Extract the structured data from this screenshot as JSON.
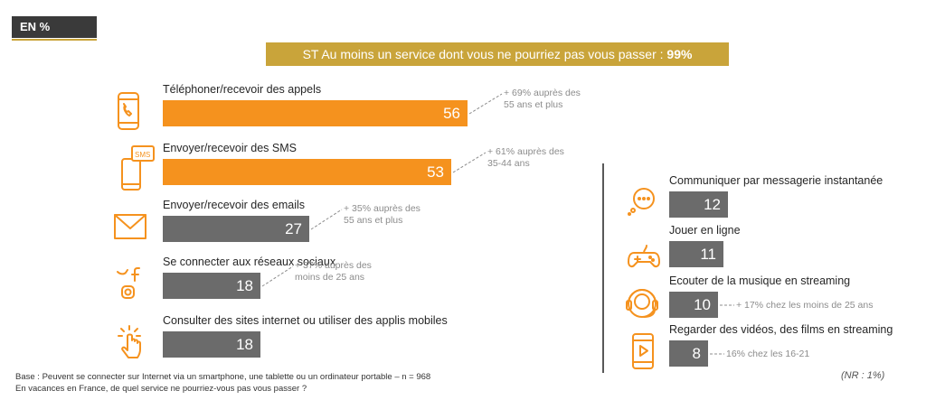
{
  "header": {
    "tag": "EN %"
  },
  "banner": {
    "text": "ST Au moins un service dont vous ne pourriez pas vous passer : ",
    "value": "99%"
  },
  "chart_data": {
    "type": "bar",
    "orientation": "horizontal",
    "categories": [
      "Téléphoner/recevoir des appels",
      "Envoyer/recevoir des SMS",
      "Envoyer/recevoir des emails",
      "Se connecter aux réseaux sociaux",
      "Consulter des sites internet ou utiliser des applis mobiles",
      "Communiquer par messagerie instantanée",
      "Jouer en ligne",
      "Ecouter de la musique en streaming",
      "Regarder des vidéos, des films en streaming"
    ],
    "values": [
      56,
      53,
      27,
      18,
      18,
      12,
      11,
      10,
      8
    ],
    "annotations": [
      "+ 69% auprès des\n55 ans et plus",
      "+ 61% auprès des\n35-44 ans",
      "+ 35% auprès des\n55 ans et plus",
      "+ 37% auprès des\nmoins de 25 ans",
      "",
      "",
      "",
      "+ 17% chez les moins de 25 ans",
      "16% chez les 16-21"
    ],
    "colors": [
      "#f5921e",
      "#f5921e",
      "#6b6b6b",
      "#6b6b6b",
      "#6b6b6b",
      "#6b6b6b",
      "#6b6b6b",
      "#6b6b6b",
      "#6b6b6b"
    ],
    "icons": [
      "phone-icon",
      "sms-icon",
      "email-icon",
      "social-icon",
      "touch-icon",
      "chat-icon",
      "gamepad-icon",
      "headset-icon",
      "video-icon"
    ]
  },
  "footer": {
    "base": "Base : Peuvent se connecter sur Internet via un smartphone, une tablette ou un ordinateur portable – n = 968",
    "question": "En vacances en France, de quel service ne pourriez-vous pas vous passer ?",
    "nr": "(NR : 1%)"
  }
}
